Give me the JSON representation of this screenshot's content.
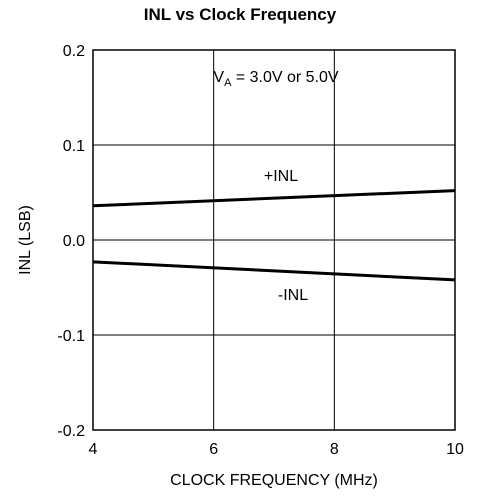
{
  "chart_data": {
    "type": "line",
    "title": "INL vs Clock Frequency",
    "xlabel": "CLOCK FREQUENCY (MHz)",
    "ylabel": "INL (LSB)",
    "xlim": [
      4,
      10
    ],
    "ylim": [
      -0.2,
      0.2
    ],
    "xticks": [
      4,
      6,
      8,
      10
    ],
    "xtick_labels": [
      "4",
      "6",
      "8",
      "10"
    ],
    "yticks": [
      0.2,
      0.1,
      0.0,
      -0.1,
      -0.2
    ],
    "ytick_labels": [
      "0.2",
      "0.1",
      "0.0",
      "-0.1",
      "-0.2"
    ],
    "grid": true,
    "annotation": {
      "prefix": "V",
      "subscript": "A",
      "suffix": " = 3.0V or 5.0V"
    },
    "series": [
      {
        "name": "+INL",
        "x": [
          4,
          10
        ],
        "y": [
          0.036,
          0.052
        ]
      },
      {
        "name": "-INL",
        "x": [
          4,
          10
        ],
        "y": [
          -0.023,
          -0.042
        ]
      }
    ]
  }
}
